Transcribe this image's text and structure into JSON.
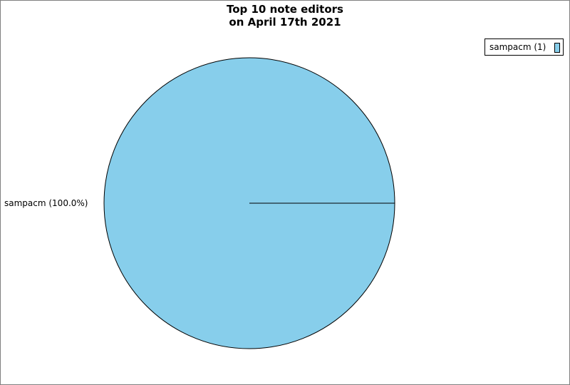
{
  "chart_data": {
    "type": "pie",
    "title": [
      "Top 10 note editors",
      "on April 17th 2021"
    ],
    "slices": [
      {
        "name": "sampacm",
        "value": 1,
        "percent_label": "sampacm (100.0%)",
        "legend_label": "sampacm (1)",
        "color": "#87ceeb"
      }
    ],
    "legend_placement": "top-right"
  }
}
